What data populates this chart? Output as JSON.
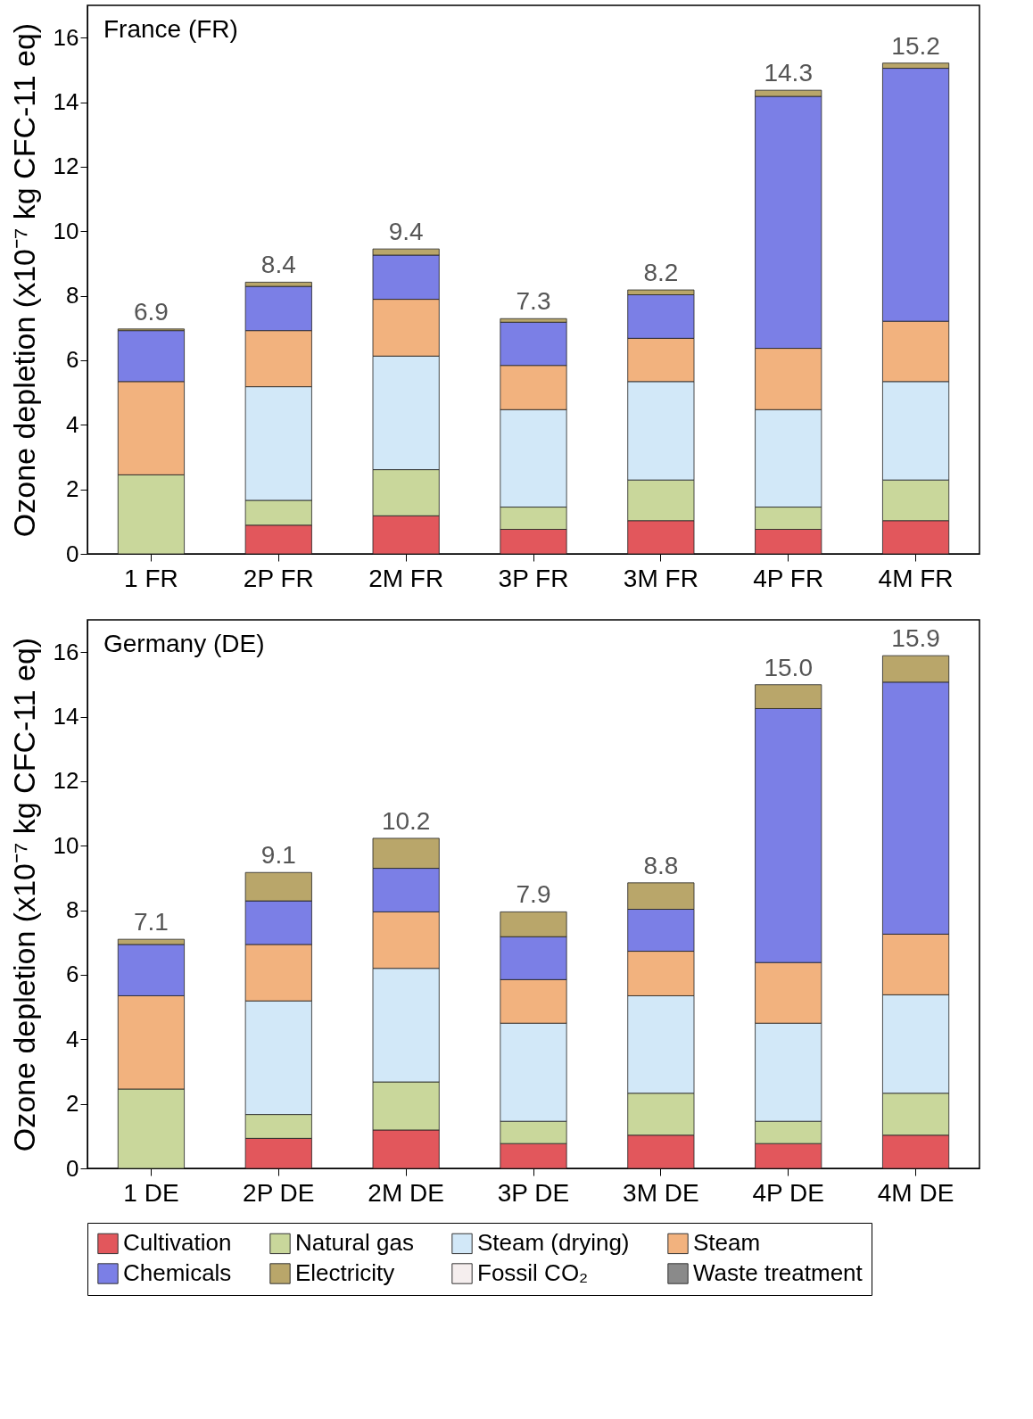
{
  "chart_data": [
    {
      "type": "bar",
      "title": "France (FR)",
      "ylabel": "Ozone depletion (x10⁻⁷ kg CFC-11 eq)",
      "stacked": true,
      "legend": "bottom",
      "grid": false,
      "categories": [
        "1 FR",
        "2P FR",
        "2M FR",
        "3P FR",
        "3M FR",
        "4P FR",
        "4M FR"
      ],
      "ylim": [
        0,
        17
      ],
      "yticks": [
        0,
        2,
        4,
        6,
        8,
        10,
        12,
        14,
        16
      ],
      "totals": [
        "6.9",
        "8.4",
        "9.4",
        "7.3",
        "8.2",
        "14.3",
        "15.2"
      ],
      "series": [
        {
          "name": "Cultivation",
          "color": "#e2575c",
          "values": [
            0,
            0.89,
            1.18,
            0.76,
            1.03,
            0.76,
            1.03
          ]
        },
        {
          "name": "Natural gas",
          "color": "#c9d79b",
          "values": [
            2.45,
            0.77,
            1.43,
            0.69,
            1.26,
            0.69,
            1.26
          ]
        },
        {
          "name": "Steam (drying)",
          "color": "#d2e8f8",
          "values": [
            0,
            3.52,
            3.52,
            3.02,
            3.05,
            3.02,
            3.05
          ]
        },
        {
          "name": "Steam",
          "color": "#f2b27e",
          "values": [
            2.89,
            1.74,
            1.76,
            1.37,
            1.34,
            1.9,
            1.87
          ]
        },
        {
          "name": "Chemicals",
          "color": "#7b7fe6",
          "values": [
            1.58,
            1.37,
            1.37,
            1.34,
            1.35,
            7.81,
            7.84
          ]
        },
        {
          "name": "Electricity",
          "color": "#b9a66a",
          "values": [
            0.05,
            0.13,
            0.19,
            0.11,
            0.15,
            0.19,
            0.16
          ]
        },
        {
          "name": "Fossil CO₂",
          "color": "#f5eeee",
          "values": [
            0,
            0,
            0,
            0,
            0,
            0,
            0
          ]
        },
        {
          "name": "Waste treatment",
          "color": "#8a8a8a",
          "values": [
            0,
            0,
            0,
            0,
            0,
            0,
            0
          ]
        }
      ]
    },
    {
      "type": "bar",
      "title": "Germany (DE)",
      "ylabel": "Ozone depletion (x10⁻⁷ kg CFC-11 eq)",
      "stacked": true,
      "legend": "bottom",
      "grid": false,
      "categories": [
        "1 DE",
        "2P DE",
        "2M DE",
        "3P DE",
        "3M DE",
        "4P DE",
        "4M DE"
      ],
      "ylim": [
        0,
        17
      ],
      "yticks": [
        0,
        2,
        4,
        6,
        8,
        10,
        12,
        14,
        16
      ],
      "totals": [
        "7.1",
        "9.1",
        "10.2",
        "7.9",
        "8.8",
        "15.0",
        "15.9"
      ],
      "series": [
        {
          "name": "Cultivation",
          "color": "#e2575c",
          "values": [
            0,
            0.93,
            1.19,
            0.77,
            1.03,
            0.77,
            1.03
          ]
        },
        {
          "name": "Natural gas",
          "color": "#c9d79b",
          "values": [
            2.46,
            0.74,
            1.49,
            0.69,
            1.3,
            0.69,
            1.3
          ]
        },
        {
          "name": "Steam (drying)",
          "color": "#d2e8f8",
          "values": [
            0,
            3.52,
            3.52,
            3.04,
            3.02,
            3.04,
            3.05
          ]
        },
        {
          "name": "Steam",
          "color": "#f2b27e",
          "values": [
            2.89,
            1.75,
            1.75,
            1.35,
            1.38,
            1.88,
            1.88
          ]
        },
        {
          "name": "Chemicals",
          "color": "#7b7fe6",
          "values": [
            1.59,
            1.35,
            1.35,
            1.33,
            1.3,
            7.87,
            7.81
          ]
        },
        {
          "name": "Electricity",
          "color": "#b9a66a",
          "values": [
            0.16,
            0.88,
            0.93,
            0.77,
            0.82,
            0.74,
            0.82
          ]
        }
      ]
    }
  ]
}
